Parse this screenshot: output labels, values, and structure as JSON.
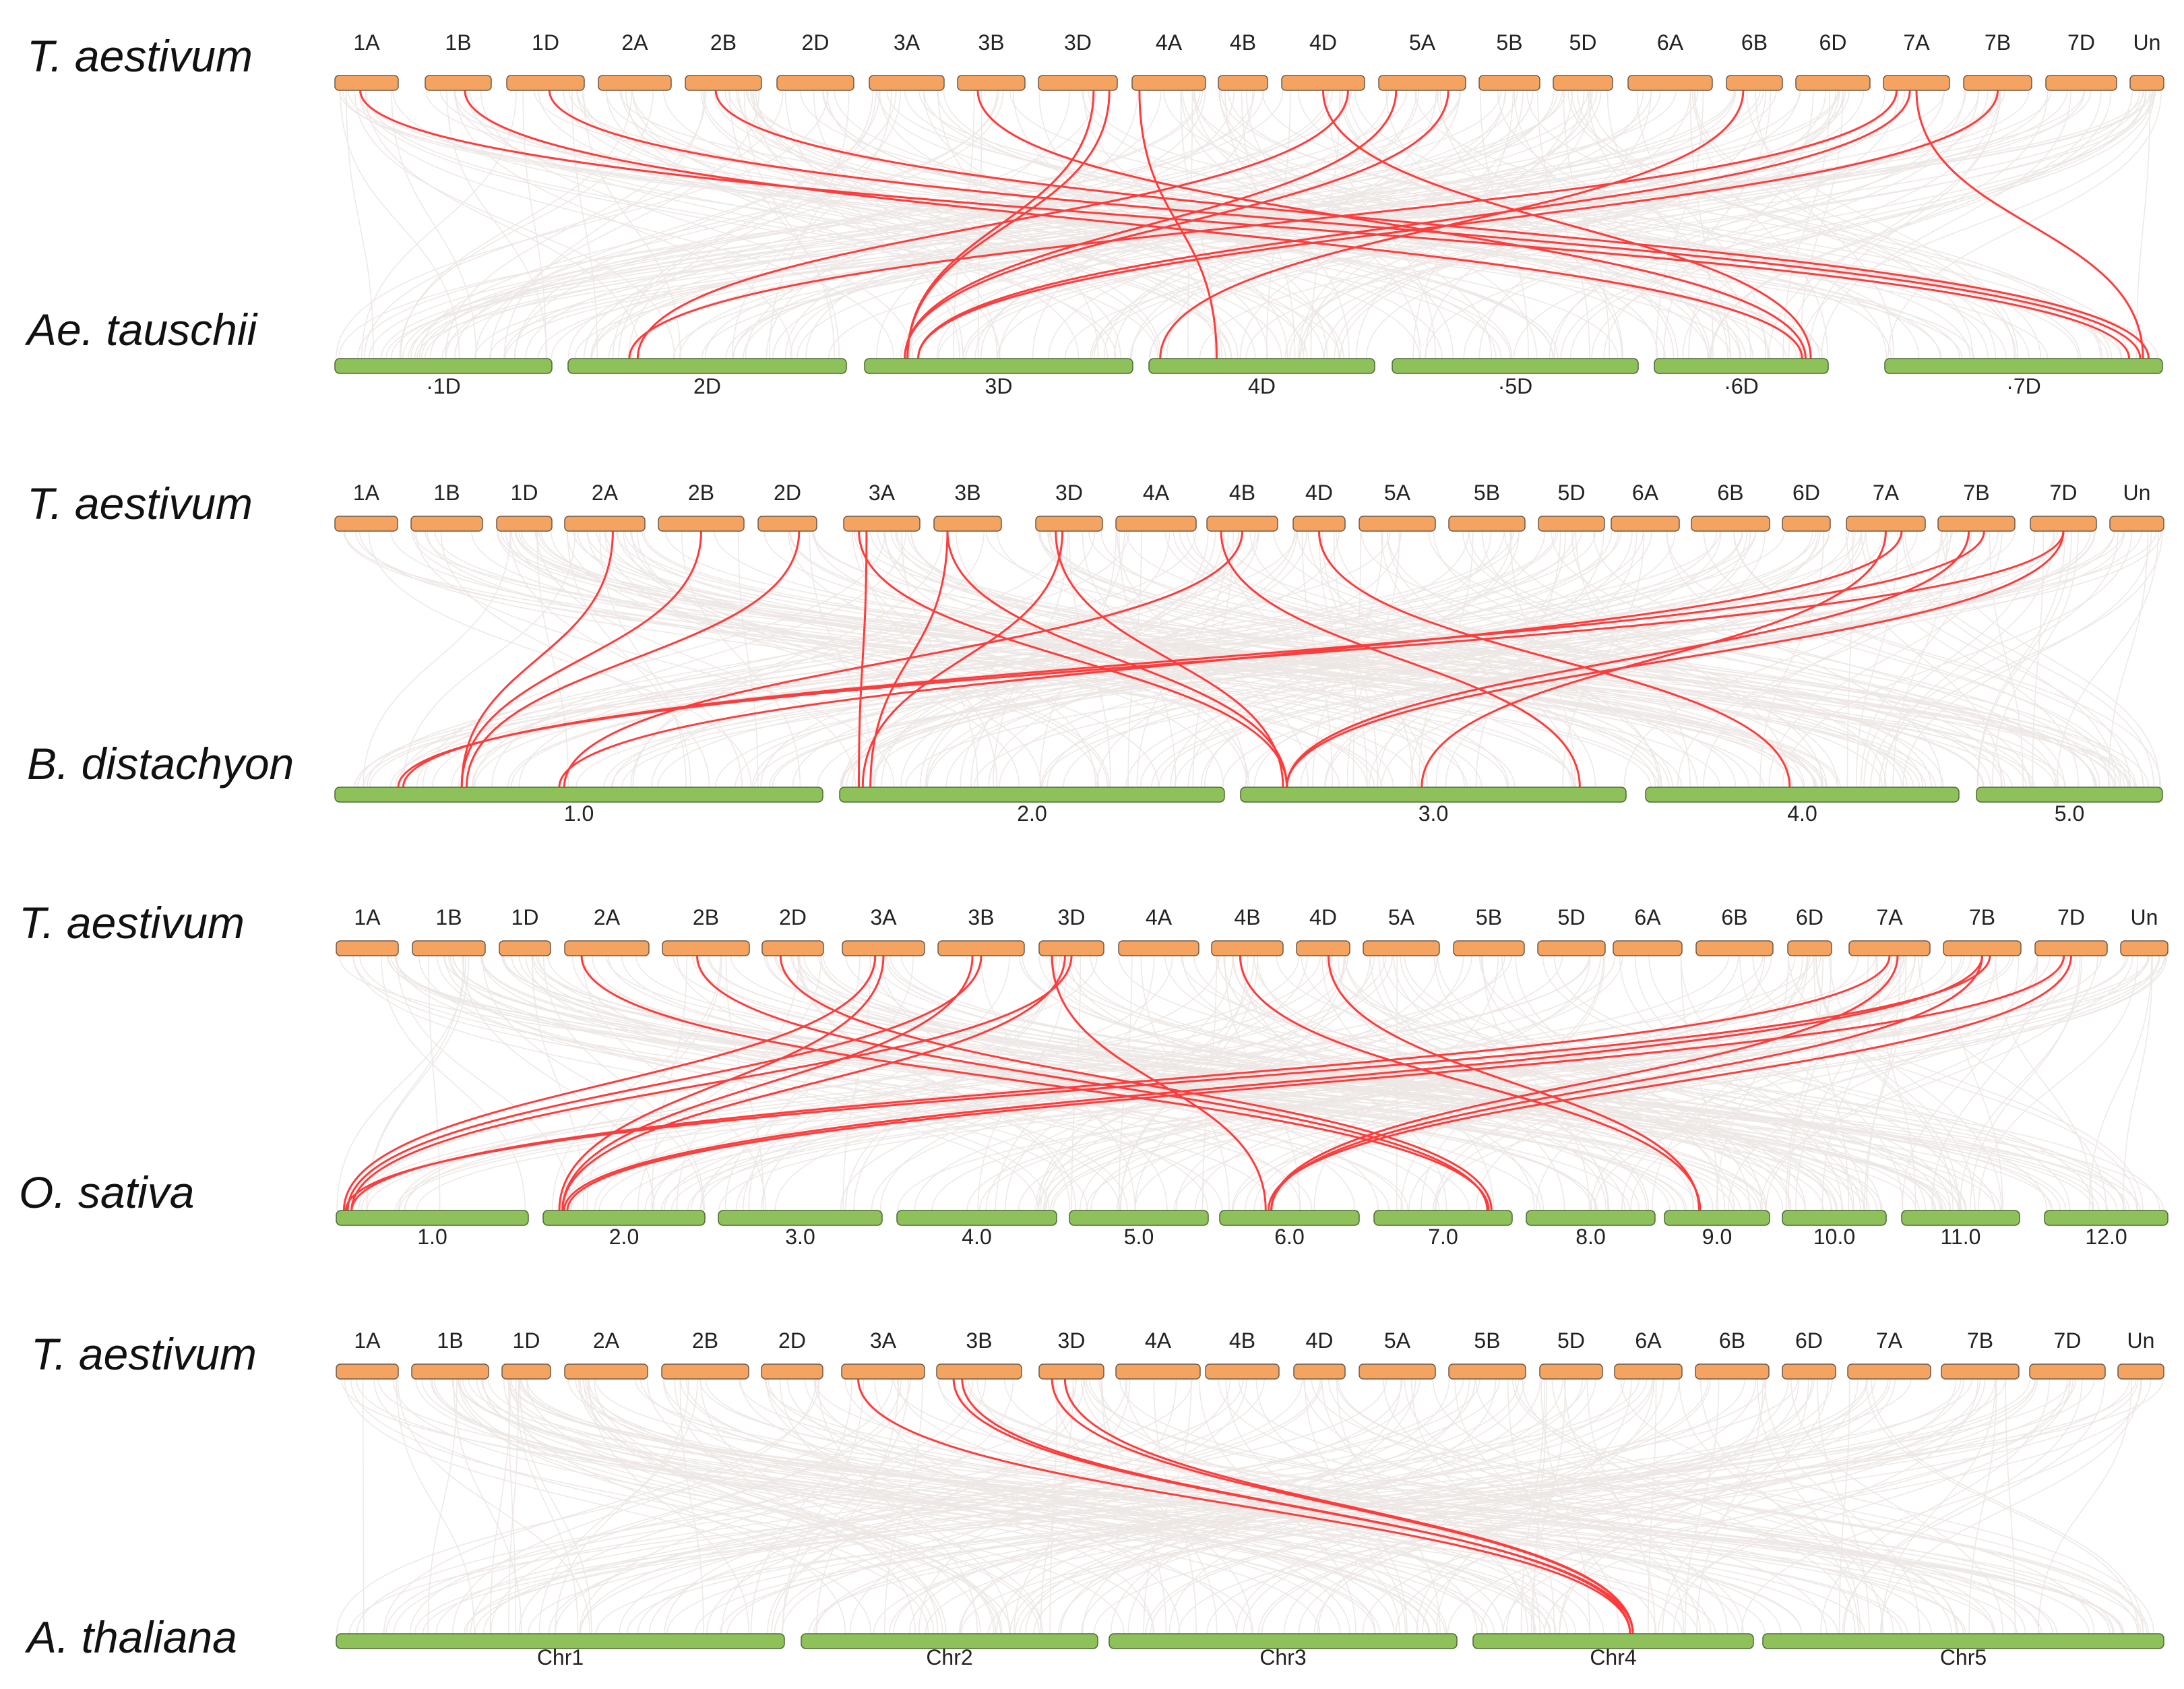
{
  "panels": [
    {
      "top_species": "T. aestivum",
      "bottom_species": "Ae. tauschii",
      "top_chromosomes": [
        "1A",
        "1B",
        "1D",
        "2A",
        "2B",
        "2D",
        "3A",
        "3B",
        "3D",
        "4A",
        "4B",
        "4D",
        "5A",
        "5B",
        "5D",
        "6A",
        "6B",
        "6D",
        "7A",
        "7B",
        "7D",
        "Un"
      ],
      "bottom_chromosomes": [
        "·1D",
        "2D",
        "3D",
        "4D",
        "·5D",
        "·6D",
        "·7D"
      ],
      "highlighted_links": [
        {
          "from": "1A",
          "to": "·7D"
        },
        {
          "from": "1B",
          "to": "·6D"
        },
        {
          "from": "1D",
          "to": "·7D"
        },
        {
          "from": "2B",
          "to": "·7D"
        },
        {
          "from": "3B",
          "to": "·6D"
        },
        {
          "from": "3D",
          "to": "3D"
        },
        {
          "from": "3D",
          "to": "3D"
        },
        {
          "from": "4A",
          "to": "4D"
        },
        {
          "from": "4D",
          "to": "2D"
        },
        {
          "from": "4D",
          "to": "·6D"
        },
        {
          "from": "5A",
          "to": "3D"
        },
        {
          "from": "5A",
          "to": "3D"
        },
        {
          "from": "6B",
          "to": "4D"
        },
        {
          "from": "7A",
          "to": "2D"
        },
        {
          "from": "7A",
          "to": "3D"
        },
        {
          "from": "7A",
          "to": "·7D"
        },
        {
          "from": "7B",
          "to": "3D"
        }
      ]
    },
    {
      "top_species": "T. aestivum",
      "bottom_species": "B. distachyon",
      "top_chromosomes": [
        "1A",
        "1B",
        "1D",
        "2A",
        "2B",
        "2D",
        "3A",
        "3B",
        "3D",
        "4A",
        "4B",
        "4D",
        "5A",
        "5B",
        "5D",
        "6A",
        "6B",
        "6D",
        "7A",
        "7B",
        "7D",
        "Un"
      ],
      "bottom_chromosomes": [
        "1.0",
        "2.0",
        "3.0",
        "4.0",
        "5.0"
      ],
      "highlighted_links": [
        {
          "from": "2A",
          "to": "1.0"
        },
        {
          "from": "2B",
          "to": "1.0"
        },
        {
          "from": "2D",
          "to": "1.0"
        },
        {
          "from": "3A",
          "to": "2.0"
        },
        {
          "from": "3A",
          "to": "3.0"
        },
        {
          "from": "3B",
          "to": "2.0"
        },
        {
          "from": "3B",
          "to": "3.0"
        },
        {
          "from": "3D",
          "to": "2.0"
        },
        {
          "from": "3D",
          "to": "3.0"
        },
        {
          "from": "4B",
          "to": "1.0"
        },
        {
          "from": "4B",
          "to": "3.0"
        },
        {
          "from": "4D",
          "to": "4.0"
        },
        {
          "from": "7A",
          "to": "1.0"
        },
        {
          "from": "7A",
          "to": "3.0"
        },
        {
          "from": "7B",
          "to": "1.0"
        },
        {
          "from": "7B",
          "to": "3.0"
        },
        {
          "from": "7D",
          "to": "1.0"
        },
        {
          "from": "7D",
          "to": "3.0"
        }
      ]
    },
    {
      "top_species": "T. aestivum",
      "bottom_species": "O. sativa",
      "top_chromosomes": [
        "1A",
        "1B",
        "1D",
        "2A",
        "2B",
        "2D",
        "3A",
        "3B",
        "3D",
        "4A",
        "4B",
        "4D",
        "5A",
        "5B",
        "5D",
        "6A",
        "6B",
        "6D",
        "7A",
        "7B",
        "7D",
        "Un"
      ],
      "bottom_chromosomes": [
        "1.0",
        "2.0",
        "3.0",
        "4.0",
        "5.0",
        "6.0",
        "7.0",
        "8.0",
        "9.0",
        "10.0",
        "11.0",
        "12.0"
      ],
      "highlighted_links": [
        {
          "from": "2A",
          "to": "7.0"
        },
        {
          "from": "2B",
          "to": "7.0"
        },
        {
          "from": "2D",
          "to": "7.0"
        },
        {
          "from": "3A",
          "to": "1.0"
        },
        {
          "from": "3A",
          "to": "2.0"
        },
        {
          "from": "3B",
          "to": "1.0"
        },
        {
          "from": "3B",
          "to": "2.0"
        },
        {
          "from": "3D",
          "to": "1.0"
        },
        {
          "from": "3D",
          "to": "2.0"
        },
        {
          "from": "3D",
          "to": "6.0"
        },
        {
          "from": "4B",
          "to": "9.0"
        },
        {
          "from": "4D",
          "to": "9.0"
        },
        {
          "from": "7A",
          "to": "1.0"
        },
        {
          "from": "7A",
          "to": "6.0"
        },
        {
          "from": "7B",
          "to": "1.0"
        },
        {
          "from": "7B",
          "to": "2.0"
        },
        {
          "from": "7B",
          "to": "6.0"
        },
        {
          "from": "7D",
          "to": "2.0"
        },
        {
          "from": "7D",
          "to": "6.0"
        }
      ]
    },
    {
      "top_species": "T. aestivum",
      "bottom_species": "A. thaliana",
      "top_chromosomes": [
        "1A",
        "1B",
        "1D",
        "2A",
        "2B",
        "2D",
        "3A",
        "3B",
        "3D",
        "4A",
        "4B",
        "4D",
        "5A",
        "5B",
        "5D",
        "6A",
        "6B",
        "6D",
        "7A",
        "7B",
        "7D",
        "Un"
      ],
      "bottom_chromosomes": [
        "Chr1",
        "Chr2",
        "Chr3",
        "Chr4",
        "Chr5"
      ],
      "highlighted_links": [
        {
          "from": "3A",
          "to": "Chr4"
        },
        {
          "from": "3B",
          "to": "Chr4"
        },
        {
          "from": "3B",
          "to": "Chr4"
        },
        {
          "from": "3D",
          "to": "Chr4"
        },
        {
          "from": "3D",
          "to": "Chr4"
        }
      ]
    }
  ],
  "colors": {
    "top_chromosome": "#f4a460",
    "bottom_chromosome": "#8fc15a",
    "highlight_link": "#ff3b3b",
    "background_link": "#ece7e4"
  }
}
